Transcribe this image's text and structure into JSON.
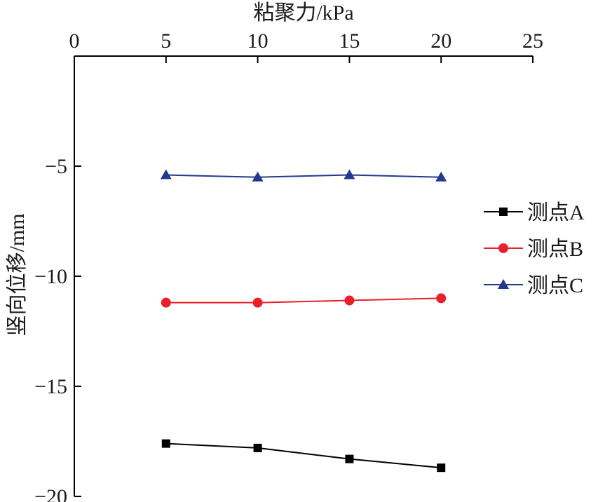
{
  "chart_data": {
    "type": "line",
    "xlabel": "粘聚力/kPa",
    "ylabel": "竖向位移/mm",
    "x_axis_position": "top",
    "xlim": [
      0,
      25
    ],
    "ylim": [
      -20,
      0
    ],
    "x_ticks": [
      0,
      5,
      10,
      15,
      20,
      25
    ],
    "y_ticks": [
      -5,
      -10,
      -15,
      -20
    ],
    "x_tick_labels": [
      "0",
      "5",
      "10",
      "15",
      "20",
      "25"
    ],
    "y_tick_labels": [
      "−5",
      "−10",
      "−15",
      "−20"
    ],
    "grid": false,
    "legend_position": "right",
    "x": [
      5,
      10,
      15,
      20
    ],
    "series": [
      {
        "name": "测点A",
        "color": "#000000",
        "marker": "square",
        "values": [
          -17.6,
          -17.8,
          -18.3,
          -18.7
        ]
      },
      {
        "name": "测点B",
        "color": "#e8202a",
        "marker": "circle",
        "values": [
          -11.2,
          -11.2,
          -11.1,
          -11.0
        ]
      },
      {
        "name": "测点C",
        "color": "#23398e",
        "marker": "triangle",
        "values": [
          -5.4,
          -5.5,
          -5.4,
          -5.5
        ]
      }
    ]
  }
}
